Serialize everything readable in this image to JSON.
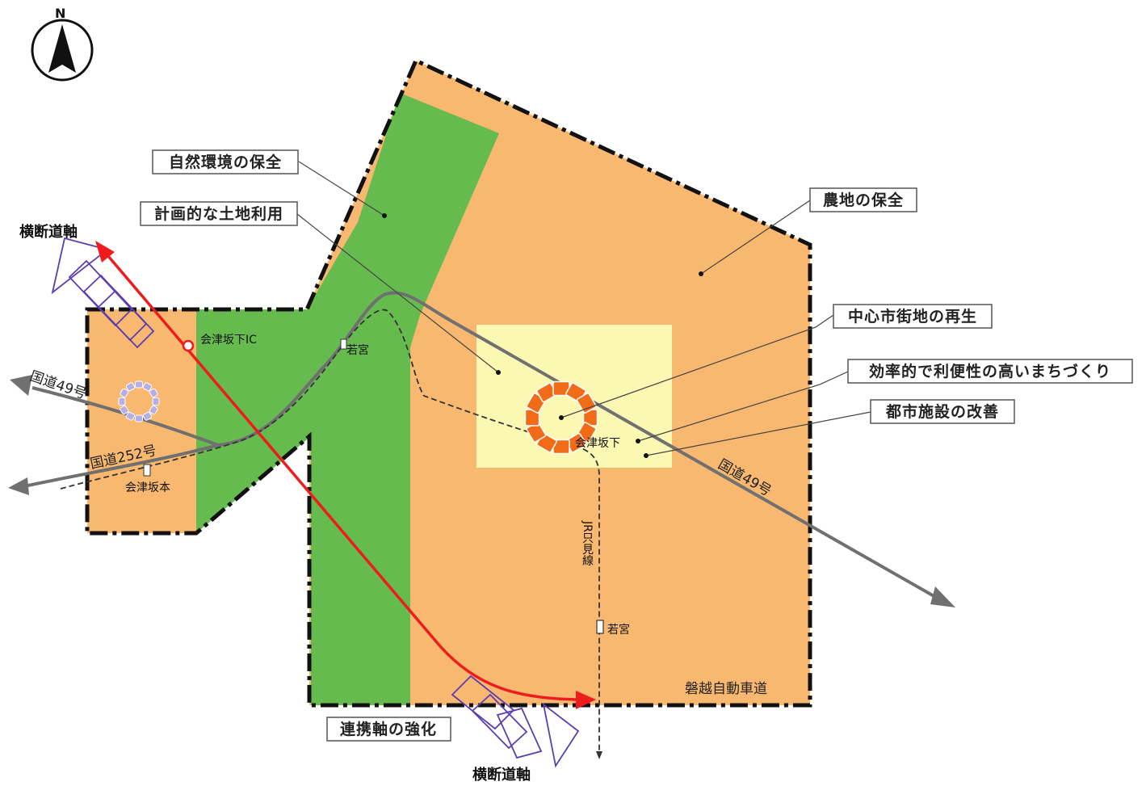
{
  "compass": {
    "letter": "N"
  },
  "labels": {
    "nature": "自然環境の保全",
    "land_use": "計画的な土地利用",
    "farmland": "農地の保全",
    "center": "中心市街地の再生",
    "efficient": "効率的で利便性の高いまちづくり",
    "facilities": "都市施設の改善",
    "cooperation": "連携軸の強化"
  },
  "axes": {
    "cross_top": "横断道軸",
    "cross_bottom": "横断道軸"
  },
  "places": {
    "ic": "会津坂下IC",
    "station_small": "若宮",
    "town_station": "会津坂下",
    "bange_moto": "会津坂本",
    "wakamiya": "若宮",
    "jr_line": "JR只見線",
    "expressway": "磐越自動車道"
  },
  "roads": {
    "r49_left": "国道49号",
    "r252": "国道252号",
    "r49_right": "国道49号"
  },
  "colors": {
    "farmland": "#f8b870",
    "nature": "#66bb4f",
    "center": "#fbf8b4",
    "axis": "#ee1c1c",
    "road": "#707070",
    "ring": "#f26b17",
    "arrow_outline": "#5b3fb0"
  }
}
